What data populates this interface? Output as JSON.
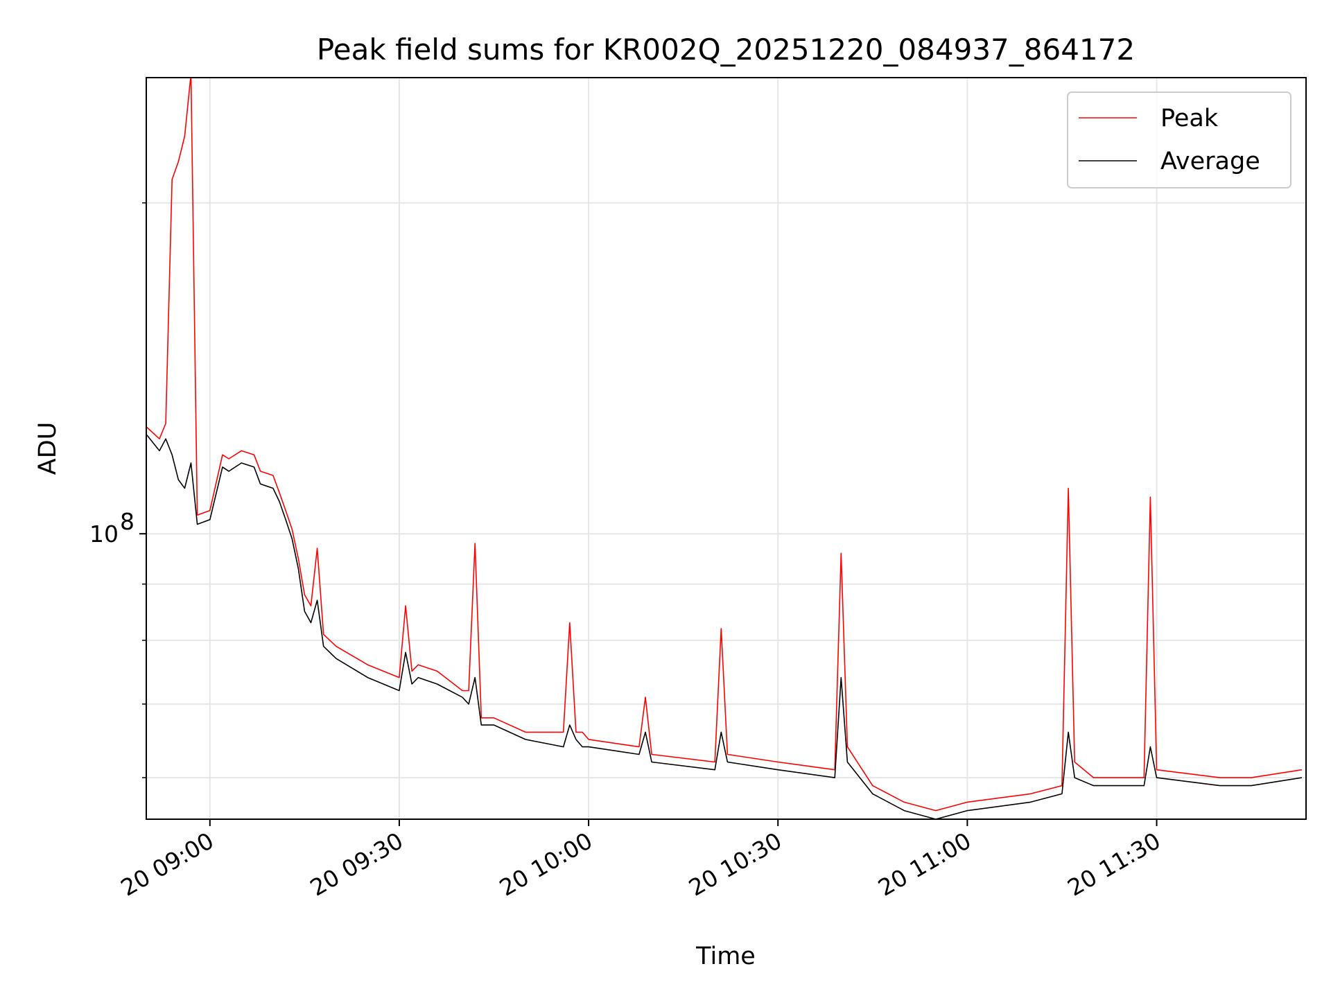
{
  "chart_data": {
    "type": "line",
    "title": "Peak field sums for KR002Q_20251220_084937_864172",
    "xlabel": "Time",
    "ylabel": "ADU",
    "yscale": "log",
    "grid": true,
    "legend_position": "top-right",
    "x_range": [
      "2025-12-20 08:49:55",
      "2025-12-20 11:53:40"
    ],
    "y_range": [
      55000000,
      260000000
    ],
    "x_ticks": [
      {
        "time": "2025-12-20 09:00",
        "label": "20 09:00"
      },
      {
        "time": "2025-12-20 09:30",
        "label": "20 09:30"
      },
      {
        "time": "2025-12-20 10:00",
        "label": "20 10:00"
      },
      {
        "time": "2025-12-20 10:30",
        "label": "20 10:30"
      },
      {
        "time": "2025-12-20 11:00",
        "label": "20 11:00"
      },
      {
        "time": "2025-12-20 11:30",
        "label": "20 11:30"
      }
    ],
    "y_ticks": [
      {
        "value": 100000000,
        "label": "10",
        "exponent": "8"
      }
    ],
    "colors": {
      "peak": "#ff0000",
      "average": "#000000"
    },
    "series": [
      {
        "name": "Peak",
        "color": "#ff0000",
        "x": [
          "2025-12-20 08:50",
          "2025-12-20 08:52",
          "2025-12-20 08:53",
          "2025-12-20 08:54",
          "2025-12-20 08:55",
          "2025-12-20 08:56",
          "2025-12-20 08:57",
          "2025-12-20 08:58",
          "2025-12-20 09:00",
          "2025-12-20 09:02",
          "2025-12-20 09:03",
          "2025-12-20 09:05",
          "2025-12-20 09:07",
          "2025-12-20 09:08",
          "2025-12-20 09:10",
          "2025-12-20 09:11",
          "2025-12-20 09:12",
          "2025-12-20 09:13",
          "2025-12-20 09:14",
          "2025-12-20 09:15",
          "2025-12-20 09:16",
          "2025-12-20 09:17",
          "2025-12-20 09:18",
          "2025-12-20 09:20",
          "2025-12-20 09:25",
          "2025-12-20 09:30",
          "2025-12-20 09:31",
          "2025-12-20 09:32",
          "2025-12-20 09:33",
          "2025-12-20 09:36",
          "2025-12-20 09:40",
          "2025-12-20 09:41",
          "2025-12-20 09:42",
          "2025-12-20 09:43",
          "2025-12-20 09:45",
          "2025-12-20 09:50",
          "2025-12-20 09:56",
          "2025-12-20 09:57",
          "2025-12-20 09:58",
          "2025-12-20 09:59",
          "2025-12-20 10:00",
          "2025-12-20 10:08",
          "2025-12-20 10:09",
          "2025-12-20 10:10",
          "2025-12-20 10:20",
          "2025-12-20 10:21",
          "2025-12-20 10:22",
          "2025-12-20 10:30",
          "2025-12-20 10:39",
          "2025-12-20 10:40",
          "2025-12-20 10:41",
          "2025-12-20 10:45",
          "2025-12-20 10:50",
          "2025-12-20 10:55",
          "2025-12-20 11:00",
          "2025-12-20 11:10",
          "2025-12-20 11:15",
          "2025-12-20 11:16",
          "2025-12-20 11:17",
          "2025-12-20 11:20",
          "2025-12-20 11:28",
          "2025-12-20 11:29",
          "2025-12-20 11:30",
          "2025-12-20 11:40",
          "2025-12-20 11:45",
          "2025-12-20 11:53"
        ],
        "y": [
          125000000,
          122000000,
          126000000,
          210000000,
          218000000,
          230000000,
          262000000,
          104000000,
          105000000,
          118000000,
          117000000,
          119000000,
          118000000,
          114000000,
          113000000,
          109000000,
          105000000,
          101000000,
          95000000,
          88000000,
          86000000,
          97000000,
          81000000,
          79000000,
          76000000,
          74000000,
          86000000,
          75000000,
          76000000,
          75000000,
          72000000,
          72000000,
          98000000,
          68000000,
          68000000,
          66000000,
          66000000,
          83000000,
          66000000,
          66000000,
          65000000,
          64000000,
          71000000,
          63000000,
          62000000,
          82000000,
          63000000,
          62000000,
          61000000,
          96000000,
          64000000,
          59000000,
          57000000,
          56000000,
          57000000,
          58000000,
          59000000,
          110000000,
          62000000,
          60000000,
          60000000,
          108000000,
          61000000,
          60000000,
          60000000,
          61000000
        ]
      },
      {
        "name": "Average",
        "color": "#000000",
        "x": [
          "2025-12-20 08:50",
          "2025-12-20 08:52",
          "2025-12-20 08:53",
          "2025-12-20 08:54",
          "2025-12-20 08:55",
          "2025-12-20 08:56",
          "2025-12-20 08:57",
          "2025-12-20 08:58",
          "2025-12-20 09:00",
          "2025-12-20 09:02",
          "2025-12-20 09:03",
          "2025-12-20 09:05",
          "2025-12-20 09:07",
          "2025-12-20 09:08",
          "2025-12-20 09:10",
          "2025-12-20 09:11",
          "2025-12-20 09:12",
          "2025-12-20 09:13",
          "2025-12-20 09:14",
          "2025-12-20 09:15",
          "2025-12-20 09:16",
          "2025-12-20 09:17",
          "2025-12-20 09:18",
          "2025-12-20 09:20",
          "2025-12-20 09:25",
          "2025-12-20 09:30",
          "2025-12-20 09:31",
          "2025-12-20 09:32",
          "2025-12-20 09:33",
          "2025-12-20 09:36",
          "2025-12-20 09:40",
          "2025-12-20 09:41",
          "2025-12-20 09:42",
          "2025-12-20 09:43",
          "2025-12-20 09:45",
          "2025-12-20 09:50",
          "2025-12-20 09:56",
          "2025-12-20 09:57",
          "2025-12-20 09:58",
          "2025-12-20 09:59",
          "2025-12-20 10:00",
          "2025-12-20 10:08",
          "2025-12-20 10:09",
          "2025-12-20 10:10",
          "2025-12-20 10:20",
          "2025-12-20 10:21",
          "2025-12-20 10:22",
          "2025-12-20 10:30",
          "2025-12-20 10:39",
          "2025-12-20 10:40",
          "2025-12-20 10:41",
          "2025-12-20 10:45",
          "2025-12-20 10:50",
          "2025-12-20 10:55",
          "2025-12-20 11:00",
          "2025-12-20 11:10",
          "2025-12-20 11:15",
          "2025-12-20 11:16",
          "2025-12-20 11:17",
          "2025-12-20 11:20",
          "2025-12-20 11:28",
          "2025-12-20 11:29",
          "2025-12-20 11:30",
          "2025-12-20 11:40",
          "2025-12-20 11:45",
          "2025-12-20 11:53"
        ],
        "y": [
          123000000,
          119000000,
          122000000,
          118000000,
          112000000,
          110000000,
          116000000,
          102000000,
          103000000,
          115000000,
          114000000,
          116000000,
          115000000,
          111000000,
          110000000,
          107000000,
          103000000,
          99000000,
          93000000,
          85000000,
          83000000,
          87000000,
          79000000,
          77000000,
          74000000,
          72000000,
          78000000,
          73000000,
          74000000,
          73000000,
          71000000,
          70000000,
          74000000,
          67000000,
          67000000,
          65000000,
          64000000,
          67000000,
          65000000,
          64000000,
          64000000,
          63000000,
          66000000,
          62000000,
          61000000,
          66000000,
          62000000,
          61000000,
          60000000,
          74000000,
          62000000,
          58000000,
          56000000,
          55000000,
          56000000,
          57000000,
          58000000,
          66000000,
          60000000,
          59000000,
          59000000,
          64000000,
          60000000,
          59000000,
          59000000,
          60000000
        ]
      }
    ]
  }
}
